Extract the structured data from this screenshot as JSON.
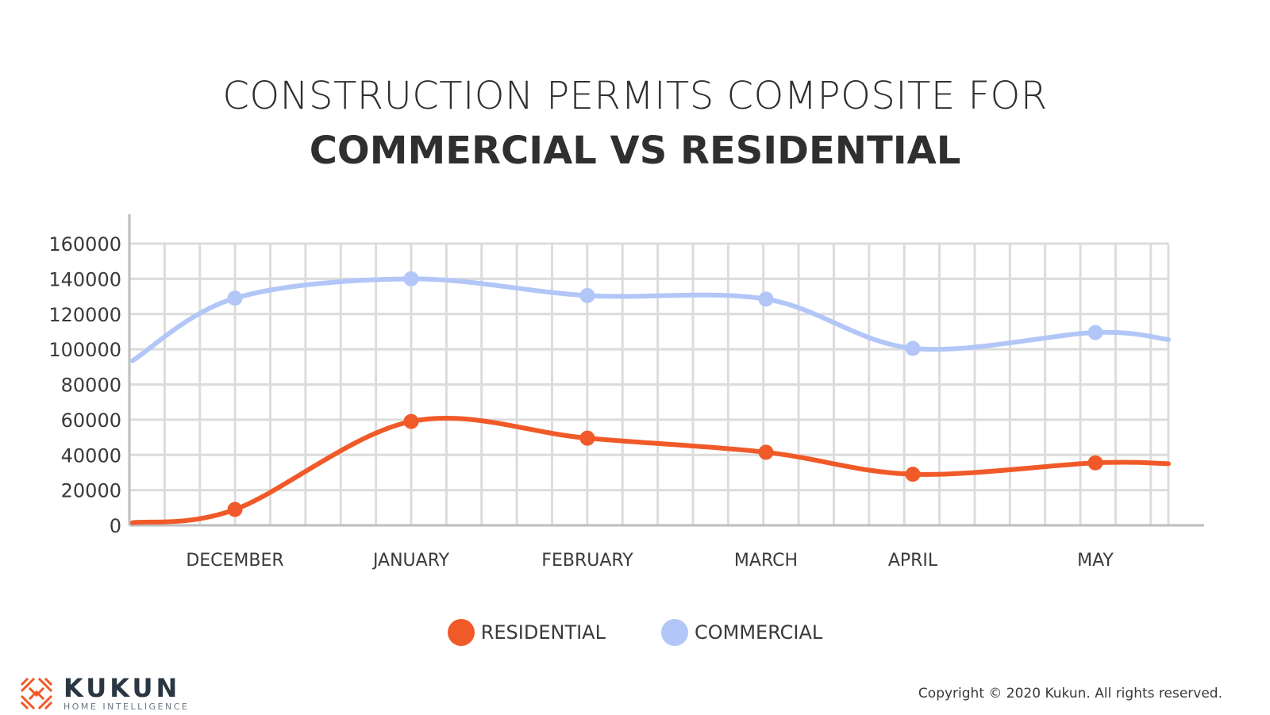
{
  "title": {
    "line1": "CONSTRUCTION PERMITS COMPOSITE FOR",
    "line2": "COMMERCIAL VS RESIDENTIAL"
  },
  "chart_data": {
    "type": "line",
    "categories": [
      "DECEMBER",
      "JANUARY",
      "FEBRUARY",
      "MARCH",
      "APRIL",
      "MAY"
    ],
    "yticks": [
      0,
      20000,
      40000,
      60000,
      80000,
      100000,
      120000,
      140000,
      160000
    ],
    "ylim": [
      0,
      160000
    ],
    "grid": true,
    "legend_position": "bottom-center",
    "series": [
      {
        "name": "RESIDENTIAL",
        "color": "#f05a28",
        "values": [
          9000,
          59000,
          49500,
          41500,
          29000,
          35500
        ],
        "start_value": 1500,
        "end_value": 35000
      },
      {
        "name": "COMMERCIAL",
        "color": "#b2c6f7",
        "values": [
          129000,
          140000,
          130500,
          128500,
          100500,
          109500
        ],
        "start_value": 93500,
        "end_value": 105500
      }
    ]
  },
  "legend": {
    "items": [
      "RESIDENTIAL",
      "COMMERCIAL"
    ]
  },
  "brand": {
    "name": "KUKUN",
    "tagline": "HOME INTELLIGENCE",
    "logo_color": "#f05a28"
  },
  "footer": {
    "copyright": "Copyright © 2020 Kukun. All rights reserved."
  }
}
